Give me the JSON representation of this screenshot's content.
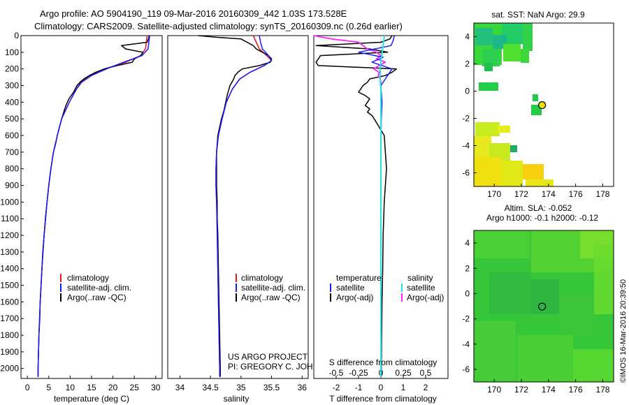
{
  "header": {
    "line1": "Argo profile: AO 5904190_119 09-Mar-2016 20160309_442 1.03S 173.528E",
    "line2": "Climatology: CARS2009. Satellite-adjusted climatology: synTS_20160309.nc (0.26d earlier)"
  },
  "colors": {
    "climatology": "#e8141e",
    "satellite": "#1a1aff",
    "argo": "#000000",
    "salinity_satellite": "#22e6e6",
    "salinity_argo": "#ff22ff"
  },
  "depth_axis": {
    "ticks": [
      "0",
      "100",
      "200",
      "300",
      "400",
      "500",
      "600",
      "700",
      "800",
      "900",
      "1000",
      "1100",
      "1200",
      "1300",
      "1400",
      "1500",
      "1600",
      "1700",
      "1800",
      "1900",
      "2000"
    ]
  },
  "chart_data": [
    {
      "id": "temperature",
      "type": "line",
      "xlabel": "temperature (deg C)",
      "ylabel": "depth",
      "xlim": [
        -1.5,
        31.5
      ],
      "ylim": [
        2060,
        0
      ],
      "xticks": [
        "0",
        "5",
        "10",
        "15",
        "20",
        "25",
        "30"
      ],
      "legend": [
        "climatology",
        "satellite-adj. clim.",
        "Argo(..raw -QC)"
      ],
      "series": [
        {
          "name": "climatology",
          "depth": [
            0,
            40,
            80,
            120,
            160,
            200,
            240,
            280,
            320,
            400,
            500,
            600,
            700,
            800,
            900,
            1000,
            1200,
            1400,
            1600,
            1800,
            2000,
            2050
          ],
          "values": [
            28.0,
            27.8,
            27.6,
            26.5,
            23.0,
            18.0,
            14.5,
            12.5,
            11.5,
            9.8,
            8.0,
            7.0,
            6.1,
            5.5,
            5.0,
            4.6,
            3.9,
            3.4,
            3.0,
            2.7,
            2.5,
            2.5
          ]
        },
        {
          "name": "satellite-adj. clim.",
          "depth": [
            0,
            40,
            80,
            120,
            160,
            200,
            240,
            280,
            320,
            400,
            500,
            600,
            700,
            800,
            900,
            1000,
            1200,
            1400,
            1600,
            1800,
            2000,
            2050
          ],
          "values": [
            28.6,
            28.4,
            28.2,
            26.8,
            22.5,
            18.5,
            15.0,
            12.7,
            11.5,
            9.8,
            8.0,
            7.0,
            6.1,
            5.5,
            5.0,
            4.6,
            3.9,
            3.4,
            3.0,
            2.7,
            2.5,
            2.5
          ]
        },
        {
          "name": "Argo(..raw -QC)",
          "depth": [
            0,
            20,
            40,
            60,
            80,
            100,
            120,
            140,
            160,
            180,
            200,
            220,
            240,
            260,
            280,
            300,
            340,
            380,
            420,
            460,
            500,
            550,
            600,
            650,
            700,
            800,
            900,
            1000,
            1100,
            1200,
            1300,
            1400,
            1500,
            1600,
            1700,
            1800,
            1900,
            2000,
            2050
          ],
          "values": [
            28.5,
            28.3,
            28.0,
            22.0,
            23.0,
            27.0,
            26.5,
            25.0,
            24.5,
            21.0,
            18.0,
            16.0,
            14.5,
            13.2,
            12.3,
            11.6,
            10.8,
            9.7,
            9.0,
            8.5,
            8.0,
            7.5,
            7.0,
            6.6,
            6.1,
            5.5,
            5.0,
            4.6,
            4.2,
            3.9,
            3.6,
            3.4,
            3.2,
            3.0,
            2.9,
            2.7,
            2.6,
            2.5,
            2.5
          ]
        }
      ]
    },
    {
      "id": "salinity",
      "type": "line",
      "xlabel": "salinity",
      "ylabel": "depth",
      "xlim": [
        33.8,
        36.1
      ],
      "ylim": [
        2060,
        0
      ],
      "xticks": [
        "34",
        "34.5",
        "35",
        "35.5",
        "36"
      ],
      "legend": [
        "climatology",
        "satellite-adj. clim.",
        "Argo(..raw -QC)"
      ],
      "annotation_line1": "US ARGO PROJECT",
      "annotation_line2": "PI: GREGORY C. JOHNSON",
      "series": [
        {
          "name": "climatology",
          "depth": [
            0,
            40,
            80,
            120,
            150,
            180,
            220,
            260,
            320,
            400,
            500,
            600,
            700,
            800,
            900,
            1000,
            1200,
            1400,
            1600,
            1800,
            2000,
            2050
          ],
          "values": [
            35.2,
            35.25,
            35.3,
            35.42,
            35.5,
            35.38,
            35.15,
            34.98,
            34.86,
            34.76,
            34.69,
            34.63,
            34.6,
            34.59,
            34.59,
            34.6,
            34.61,
            34.62,
            34.63,
            34.64,
            34.65,
            34.65
          ]
        },
        {
          "name": "satellite-adj. clim.",
          "depth": [
            0,
            40,
            80,
            120,
            150,
            180,
            220,
            260,
            320,
            400,
            500,
            600,
            700,
            800,
            900,
            1000,
            1200,
            1400,
            1600,
            1800,
            2000,
            2050
          ],
          "values": [
            35.3,
            35.32,
            35.35,
            35.45,
            35.5,
            35.38,
            35.15,
            34.98,
            34.86,
            34.76,
            34.69,
            34.63,
            34.6,
            34.59,
            34.59,
            34.6,
            34.61,
            34.62,
            34.63,
            34.64,
            34.65,
            34.65
          ]
        },
        {
          "name": "Argo(..raw -QC)",
          "depth": [
            0,
            10,
            20,
            30,
            40,
            60,
            80,
            100,
            120,
            140,
            160,
            180,
            200,
            220,
            240,
            260,
            280,
            300,
            350,
            400,
            450,
            500,
            600,
            700,
            800,
            900,
            1000,
            1100,
            1200,
            1400,
            1600,
            1800,
            2000,
            2050
          ],
          "values": [
            34.3,
            34.6,
            35.0,
            35.05,
            35.1,
            35.2,
            35.25,
            35.35,
            35.45,
            35.5,
            35.48,
            35.3,
            35.02,
            34.95,
            34.9,
            34.88,
            34.85,
            34.82,
            34.78,
            34.75,
            34.72,
            34.68,
            34.62,
            34.6,
            34.6,
            34.6,
            34.61,
            34.61,
            34.62,
            34.63,
            34.64,
            34.65,
            34.66,
            34.66
          ]
        }
      ]
    },
    {
      "id": "difference",
      "type": "line",
      "xlabel": "T difference from climatology",
      "x2label": "S difference from climatology",
      "ylabel": "depth",
      "xlim": [
        -3.0,
        3.0
      ],
      "x2lim": [
        -0.75,
        0.75
      ],
      "ylim": [
        2060,
        0
      ],
      "xticks": [
        "-2",
        "-1",
        "0",
        "1",
        "2"
      ],
      "x2ticks": [
        "-0.5",
        "-0.25",
        "0",
        "0.25",
        "0.5"
      ],
      "legend_temperature_title": "temperature",
      "legend_salinity_title": "salinity",
      "legend": [
        "satellite",
        "Argo(-adj)",
        "satellite",
        "Argo(-adj)"
      ],
      "series": [
        {
          "name": "T satellite",
          "depth": [
            0,
            30,
            60,
            100,
            130,
            160,
            200,
            240,
            300,
            400,
            500,
            700,
            1000,
            1500,
            2000,
            2050
          ],
          "values": [
            0.6,
            0.55,
            0.45,
            -1.0,
            0.1,
            -0.4,
            0.5,
            0.3,
            0.0,
            0.05,
            0.02,
            0.0,
            0.0,
            0.0,
            0.0,
            0.0
          ]
        },
        {
          "name": "T Argo(-adj)",
          "depth": [
            0,
            20,
            40,
            60,
            80,
            100,
            120,
            140,
            160,
            180,
            200,
            220,
            240,
            260,
            280,
            300,
            320,
            340,
            360,
            380,
            400,
            420,
            440,
            460,
            480,
            500,
            600,
            700,
            800,
            900,
            1000,
            1200,
            1400,
            1600,
            1800,
            2000,
            2050
          ],
          "values": [
            0.5,
            0.4,
            0.0,
            -2.9,
            -0.5,
            0.3,
            -2.7,
            -2.8,
            -2.9,
            -2.8,
            0.7,
            0.5,
            0.2,
            -0.5,
            -0.6,
            -0.8,
            -0.9,
            -1.0,
            -0.7,
            -0.5,
            -0.6,
            -0.7,
            -0.5,
            -0.6,
            -0.4,
            -0.3,
            0.15,
            0.2,
            0.25,
            0.2,
            0.15,
            0.1,
            0.08,
            0.05,
            0.03,
            0.02,
            0.02
          ]
        },
        {
          "name": "S satellite",
          "depth": [
            0,
            40,
            80,
            120,
            160,
            200,
            260,
            320,
            400,
            500,
            700,
            1000,
            1300,
            1600,
            2000,
            2050
          ],
          "values": [
            0.04,
            0.03,
            0.02,
            0.01,
            0.0,
            -0.01,
            -0.01,
            0.0,
            0.0,
            0.0,
            0.0,
            0.0,
            0.0,
            0.0,
            0.0,
            0.0
          ]
        },
        {
          "name": "S Argo(-adj)",
          "depth": [
            0,
            20,
            40,
            60,
            80,
            100,
            120,
            140,
            160,
            180,
            200,
            220,
            240,
            260,
            280,
            300,
            350,
            400,
            500,
            700,
            1000,
            1500,
            2000,
            2050
          ],
          "values": [
            -0.75,
            -0.55,
            -0.25,
            -0.2,
            -0.15,
            -0.05,
            0.0,
            -0.05,
            0.05,
            -0.02,
            -0.08,
            -0.02,
            -0.03,
            -0.01,
            0.0,
            0.0,
            0.0,
            0.0,
            0.0,
            0.0,
            0.0,
            0.0,
            0.0,
            0.0
          ]
        }
      ]
    },
    {
      "id": "sst_map",
      "type": "heatmap",
      "title": "sat. SST: NaN Argo: 29.9",
      "xlim": [
        168.5,
        178.8
      ],
      "ylim": [
        -7.0,
        5.0
      ],
      "xticks": [
        "170",
        "172",
        "174",
        "176",
        "178"
      ],
      "yticks": [
        "4",
        "2",
        "0",
        "-2",
        "-4",
        "-6"
      ],
      "float_position": {
        "lon": 173.528,
        "lat": -1.03
      }
    },
    {
      "id": "sla_map",
      "type": "heatmap",
      "title": "Altim. SLA: -0.052",
      "subtitle": "Argo h1000: -0.1 h2000: -0.12",
      "xlim": [
        168.5,
        178.8
      ],
      "ylim": [
        -7.0,
        5.0
      ],
      "xticks": [
        "170",
        "172",
        "174",
        "176",
        "178"
      ],
      "yticks": [
        "4",
        "2",
        "0",
        "-2",
        "-4",
        "-6"
      ],
      "float_position": {
        "lon": 173.528,
        "lat": -1.03
      }
    }
  ],
  "footer": {
    "credit": "©IMOS 16-Mar-2016 20:39:50"
  }
}
